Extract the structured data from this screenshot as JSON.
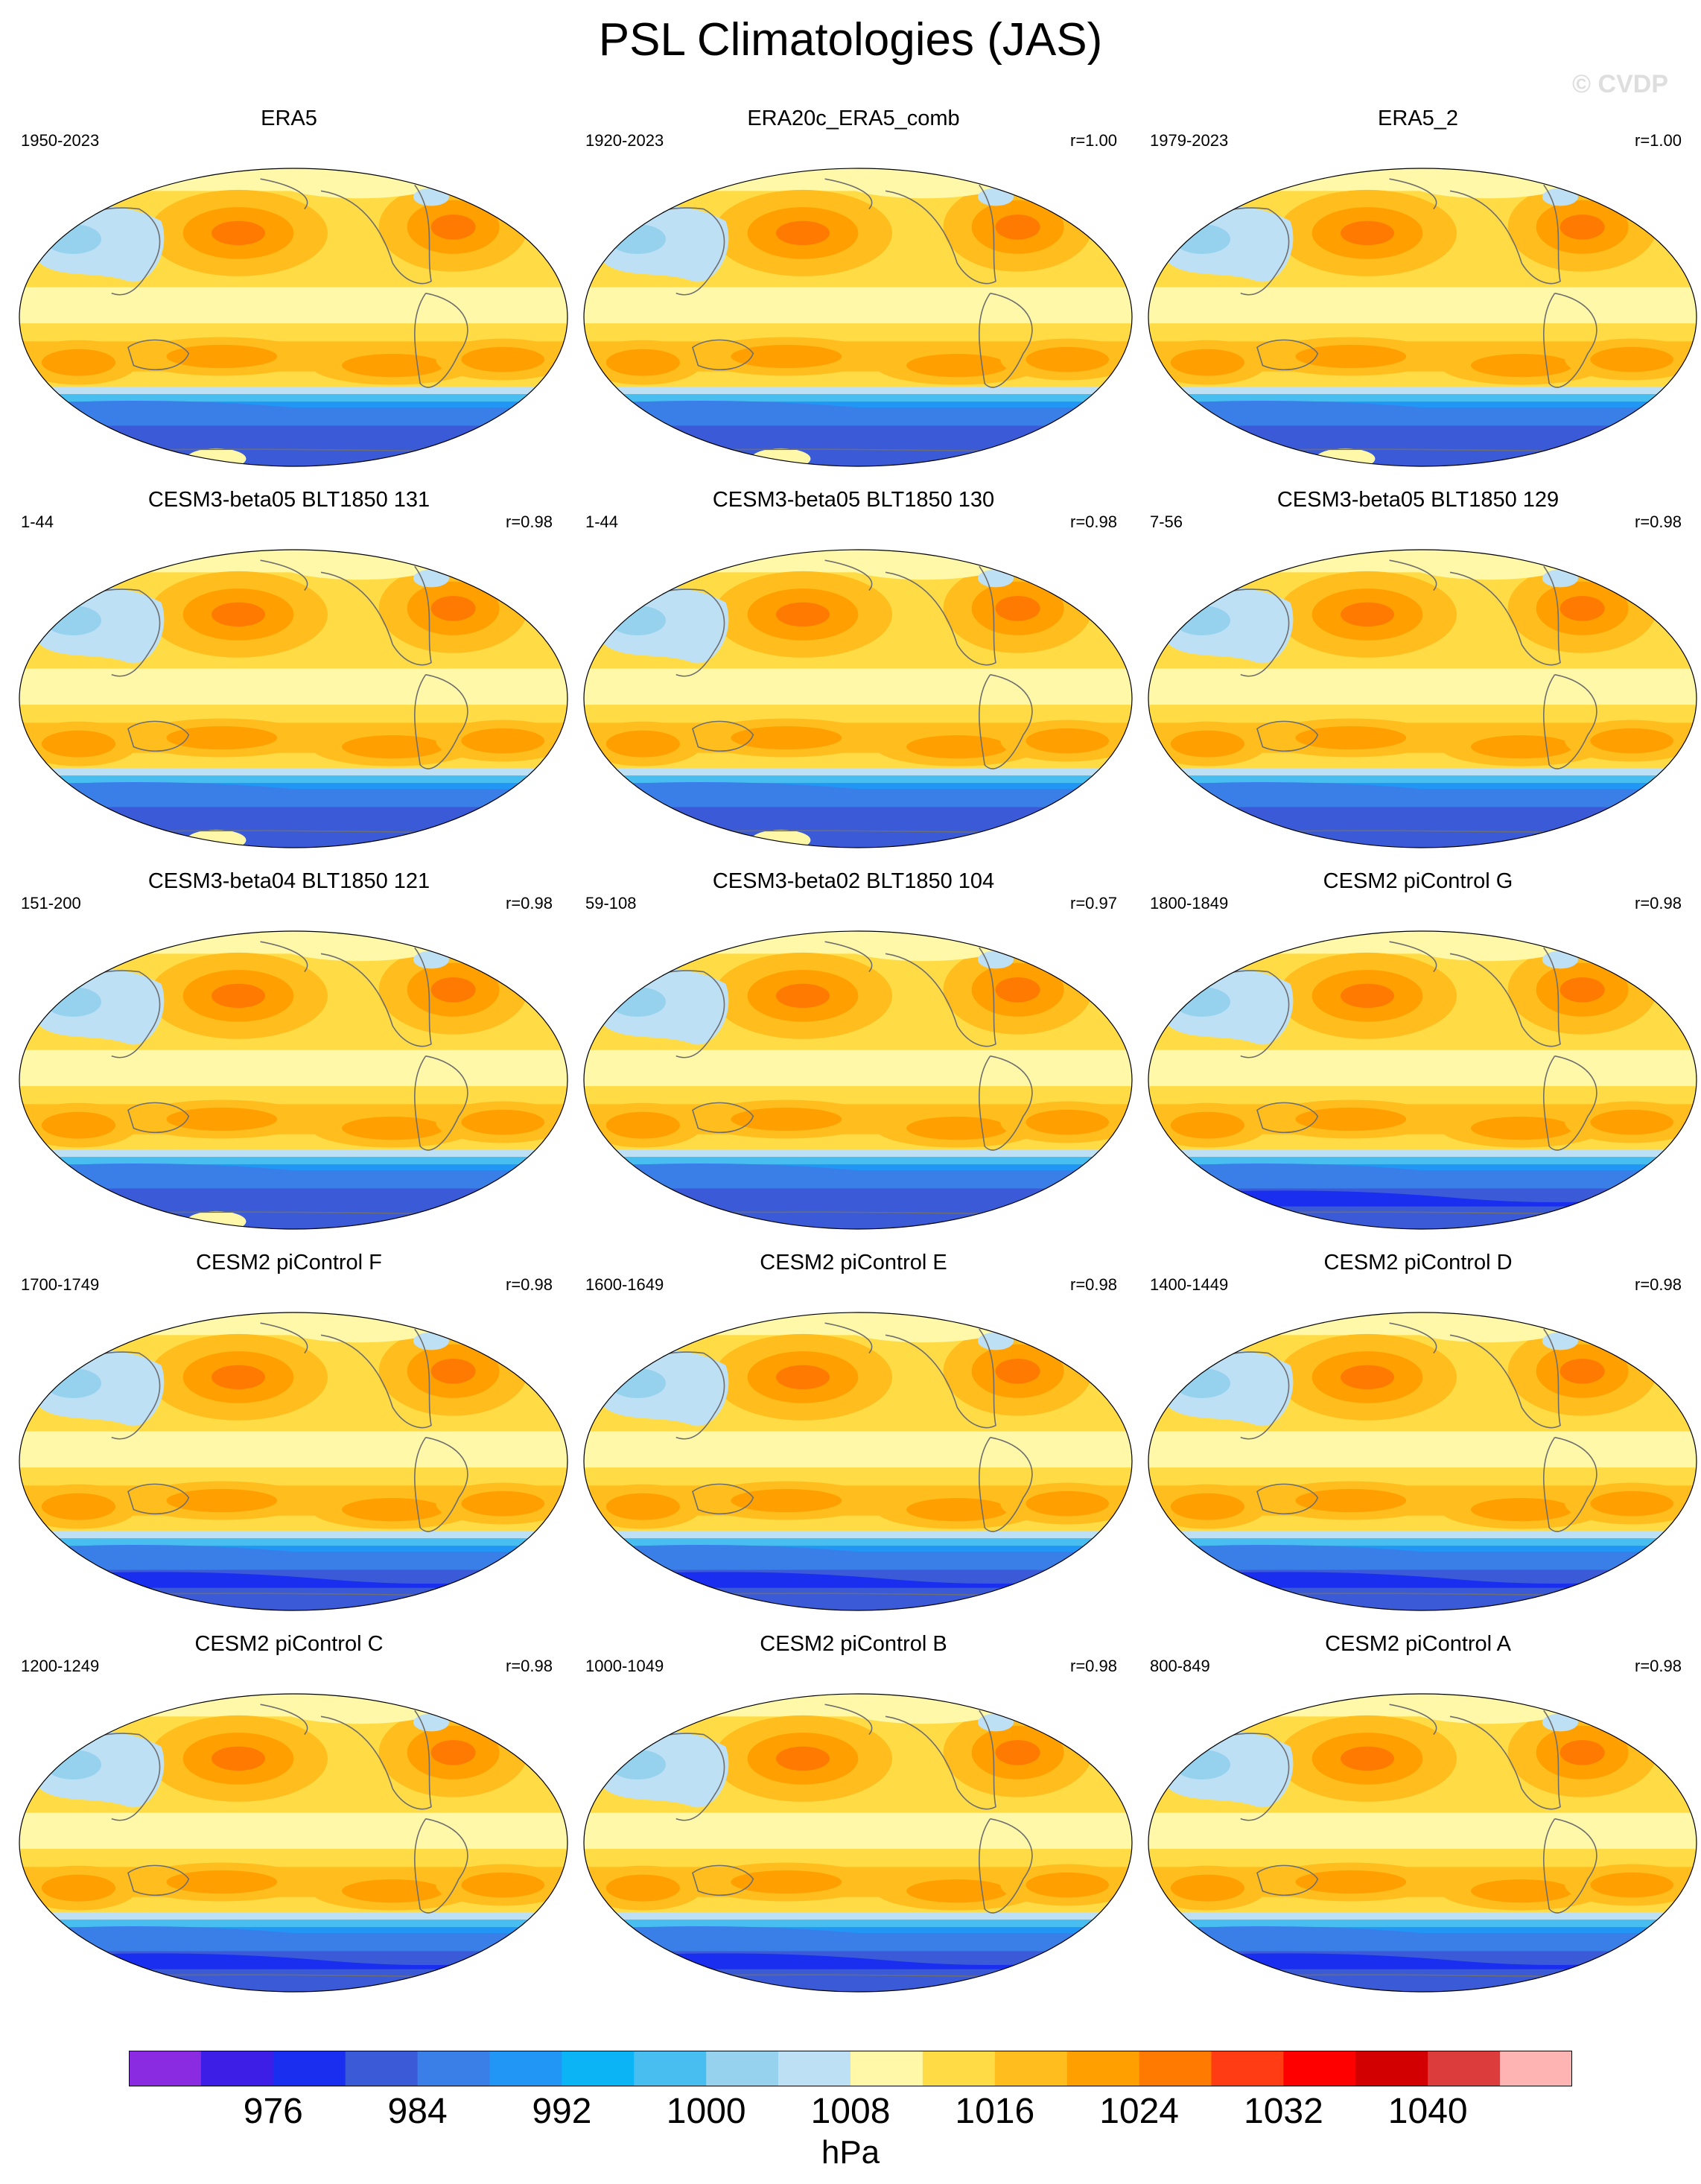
{
  "figure": {
    "title": "PSL Climatologies (JAS)",
    "watermark": "© CVDP",
    "units": "hPa"
  },
  "panels": [
    {
      "name": "ERA5",
      "years": "1950-2023",
      "r": ""
    },
    {
      "name": "ERA20c_ERA5_comb",
      "years": "1920-2023",
      "r": "r=1.00"
    },
    {
      "name": "ERA5_2",
      "years": "1979-2023",
      "r": "r=1.00"
    },
    {
      "name": "CESM3-beta05 BLT1850 131",
      "years": "1-44",
      "r": "r=0.98"
    },
    {
      "name": "CESM3-beta05 BLT1850 130",
      "years": "1-44",
      "r": "r=0.98"
    },
    {
      "name": "CESM3-beta05 BLT1850 129",
      "years": "7-56",
      "r": "r=0.98"
    },
    {
      "name": "CESM3-beta04 BLT1850 121",
      "years": "151-200",
      "r": "r=0.98"
    },
    {
      "name": "CESM3-beta02 BLT1850 104",
      "years": "59-108",
      "r": "r=0.97"
    },
    {
      "name": "CESM2 piControl G",
      "years": "1800-1849",
      "r": "r=0.98"
    },
    {
      "name": "CESM2 piControl F",
      "years": "1700-1749",
      "r": "r=0.98"
    },
    {
      "name": "CESM2 piControl E",
      "years": "1600-1649",
      "r": "r=0.98"
    },
    {
      "name": "CESM2 piControl D",
      "years": "1400-1449",
      "r": "r=0.98"
    },
    {
      "name": "CESM2 piControl C",
      "years": "1200-1249",
      "r": "r=0.98"
    },
    {
      "name": "CESM2 piControl B",
      "years": "1000-1049",
      "r": "r=0.98"
    },
    {
      "name": "CESM2 piControl A",
      "years": "800-849",
      "r": "r=0.98"
    }
  ],
  "colorbar": {
    "colors": [
      "#8a2be2",
      "#3c1ee6",
      "#1a2ef0",
      "#3a5ad8",
      "#3a7ee8",
      "#2196f5",
      "#0ab4f5",
      "#48bef0",
      "#96d2ee",
      "#bee0f5",
      "#fff8a8",
      "#ffdc46",
      "#ffbe1e",
      "#ffa000",
      "#ff7a00",
      "#ff3c14",
      "#ff0000",
      "#d20000",
      "#dc3c3c",
      "#ffb4b4"
    ],
    "labels": [
      "976",
      "984",
      "992",
      "1000",
      "1008",
      "1016",
      "1024",
      "1032",
      "1040"
    ]
  }
}
